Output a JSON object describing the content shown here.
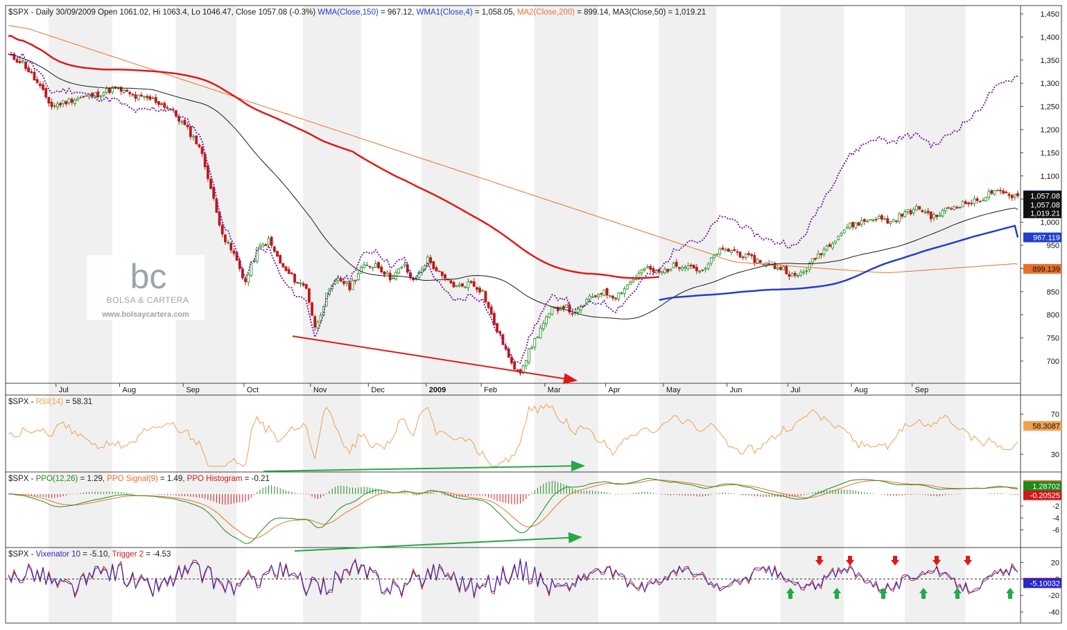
{
  "colors": {
    "frame": "#404040",
    "band": "#f0f0f0",
    "up_candle": "#1a8c1a",
    "down_candle": "#c01818",
    "wma150": "#1f3fcc",
    "wma4": "#7a1fa0",
    "ma200": "#e8702a",
    "ma50": "#1a1a1a",
    "red_ma": "#e01818",
    "rsi": "#f0a050",
    "ppo": "#1a8c1a",
    "ppo_signal": "#e8702a",
    "vix": "#2828c8",
    "trigger": "#d01818",
    "arrow_red": "#e01818",
    "arrow_green": "#22aa44",
    "logo": "#9aa4ae"
  },
  "watermark": {
    "letters": "bc",
    "name": "BOLSA & CARTERA",
    "url": "www.bolsaycartera.com"
  },
  "chart_data": [
    {
      "type": "line",
      "panel": "price",
      "title_parts": [
        {
          "text": "$SPX - Daily 30/09/2009 Open 1061.02, Hi 1063.4, Lo 1046.47, Close 1057.08 (-0.3%) ",
          "color": "#1a1a1a"
        },
        {
          "text": "WMA(Close,150)",
          "color": "#1f3fcc"
        },
        {
          "text": " = 967.12, ",
          "color": "#1a1a1a"
        },
        {
          "text": "WMA1(Close,4)",
          "color": "#1f3fcc"
        },
        {
          "text": " = 1,058.05, ",
          "color": "#1a1a1a"
        },
        {
          "text": "MA2(Close,200)",
          "color": "#e8702a"
        },
        {
          "text": " = 899.14, MA3(Close,50) = 1,019.21",
          "color": "#1a1a1a"
        }
      ],
      "x_tick_labels": [
        "Jul",
        "Aug",
        "Sep",
        "Oct",
        "Nov",
        "Dec",
        "2009",
        "Feb",
        "Mar",
        "Apr",
        "May",
        "Jun",
        "Jul",
        "Aug",
        "Sep"
      ],
      "y_ticks": [
        700,
        750,
        800,
        850,
        900,
        950,
        1000,
        1050,
        1100,
        1150,
        1200,
        1250,
        1300,
        1350,
        1400,
        1450
      ],
      "y_tick_labels": [
        "700",
        "750",
        "800",
        "850",
        "900",
        "950",
        "1,000",
        "1,050",
        "1,100",
        "1,150",
        "1,200",
        "1,250",
        "1,300",
        "1,350",
        "1,400",
        "1,450"
      ],
      "ylim": [
        652,
        1462
      ],
      "grid": true,
      "close_anchors": [
        [
          0,
          1360
        ],
        [
          5,
          1345
        ],
        [
          10,
          1300
        ],
        [
          15,
          1250
        ],
        [
          22,
          1265
        ],
        [
          30,
          1275
        ],
        [
          37,
          1290
        ],
        [
          44,
          1270
        ],
        [
          50,
          1265
        ],
        [
          56,
          1245
        ],
        [
          62,
          1200
        ],
        [
          66,
          1165
        ],
        [
          69,
          1100
        ],
        [
          72,
          1020
        ],
        [
          75,
          960
        ],
        [
          78,
          930
        ],
        [
          82,
          870
        ],
        [
          86,
          940
        ],
        [
          90,
          960
        ],
        [
          95,
          900
        ],
        [
          100,
          870
        ],
        [
          103,
          860
        ],
        [
          106,
          770
        ],
        [
          110,
          840
        ],
        [
          114,
          880
        ],
        [
          118,
          860
        ],
        [
          122,
          900
        ],
        [
          127,
          910
        ],
        [
          132,
          880
        ],
        [
          137,
          905
        ],
        [
          140,
          870
        ],
        [
          145,
          920
        ],
        [
          150,
          880
        ],
        [
          155,
          860
        ],
        [
          160,
          870
        ],
        [
          164,
          850
        ],
        [
          168,
          780
        ],
        [
          171,
          740
        ],
        [
          174,
          690
        ],
        [
          177,
          680
        ],
        [
          180,
          720
        ],
        [
          184,
          770
        ],
        [
          188,
          810
        ],
        [
          192,
          820
        ],
        [
          196,
          800
        ],
        [
          200,
          830
        ],
        [
          205,
          850
        ],
        [
          210,
          840
        ],
        [
          215,
          870
        ],
        [
          220,
          900
        ],
        [
          225,
          890
        ],
        [
          230,
          905
        ],
        [
          235,
          910
        ],
        [
          240,
          890
        ],
        [
          245,
          935
        ],
        [
          250,
          940
        ],
        [
          255,
          925
        ],
        [
          260,
          915
        ],
        [
          264,
          905
        ],
        [
          268,
          900
        ],
        [
          272,
          880
        ],
        [
          276,
          900
        ],
        [
          280,
          930
        ],
        [
          285,
          960
        ],
        [
          290,
          990
        ],
        [
          295,
          1000
        ],
        [
          300,
          1010
        ],
        [
          305,
          1000
        ],
        [
          310,
          1020
        ],
        [
          315,
          1030
        ],
        [
          320,
          1010
        ],
        [
          325,
          1030
        ],
        [
          330,
          1040
        ],
        [
          335,
          1045
        ],
        [
          340,
          1065
        ],
        [
          345,
          1060
        ],
        [
          349,
          1057
        ]
      ],
      "series": [
        {
          "name": "WMA(Close,150)",
          "last": 967.12,
          "label": "967.119"
        },
        {
          "name": "WMA1(Close,4)",
          "last": 1058.05,
          "label": "1,058.05"
        },
        {
          "name": "MA2(Close,200)",
          "last": 899.14,
          "label": "899.139"
        },
        {
          "name": "MA3(Close,50)",
          "last": 1019.21,
          "label": "1,019.21"
        },
        {
          "name": "Close",
          "last": 1057.08,
          "label": "1,057.08"
        }
      ]
    },
    {
      "type": "line",
      "panel": "rsi",
      "title_parts": [
        {
          "text": "$SPX - ",
          "color": "#1a1a1a"
        },
        {
          "text": "RSI(14)",
          "color": "#f0a050"
        },
        {
          "text": " = 58.31",
          "color": "#1a1a1a"
        }
      ],
      "y_ticks": [
        30,
        70
      ],
      "y_tick_labels": [
        "30",
        "70"
      ],
      "ylim": [
        15,
        85
      ],
      "series": [
        {
          "name": "RSI(14)",
          "last": 58.3087,
          "label": "58.3087"
        }
      ]
    },
    {
      "type": "line",
      "panel": "ppo",
      "title_parts": [
        {
          "text": "$SPX - ",
          "color": "#1a1a1a"
        },
        {
          "text": "PPO(12,26)",
          "color": "#1a8c1a"
        },
        {
          "text": " = 1.29, ",
          "color": "#1a1a1a"
        },
        {
          "text": "PPO Signal(9)",
          "color": "#e8702a"
        },
        {
          "text": " = 1.49, ",
          "color": "#1a1a1a"
        },
        {
          "text": "PPO Histogram",
          "color": "#d01818"
        },
        {
          "text": " = -0.21",
          "color": "#1a1a1a"
        }
      ],
      "y_ticks": [
        -6,
        -4,
        -2
      ],
      "y_tick_labels": [
        "-6",
        "-4",
        "-2"
      ],
      "ylim": [
        -8.5,
        3
      ],
      "series": [
        {
          "name": "PPO Signal(9)",
          "last": 1.49227,
          "label": "1.49227"
        },
        {
          "name": "PPO(12,26)",
          "last": 1.28702,
          "label": "1.28702"
        },
        {
          "name": "PPO Histogram",
          "last": -0.20525,
          "label": "-0.20525"
        }
      ]
    },
    {
      "type": "line",
      "panel": "vixenator",
      "title_parts": [
        {
          "text": "$SPX - ",
          "color": "#1a1a1a"
        },
        {
          "text": "Vixenator 10",
          "color": "#2828c8"
        },
        {
          "text": " = -5.10, ",
          "color": "#1a1a1a"
        },
        {
          "text": "Trigger 2",
          "color": "#d01818"
        },
        {
          "text": " = -4.53",
          "color": "#1a1a1a"
        }
      ],
      "y_ticks": [
        -40,
        -20,
        0,
        20
      ],
      "y_tick_labels": [
        "-40",
        "-20",
        "0",
        "20"
      ],
      "ylim": [
        -50,
        33
      ],
      "series": [
        {
          "name": "Trigger 2",
          "last": -4.53128,
          "label": "-4.53128"
        },
        {
          "name": "Vixenator 10",
          "last": -5.10032,
          "label": "-5.10032"
        }
      ]
    }
  ]
}
